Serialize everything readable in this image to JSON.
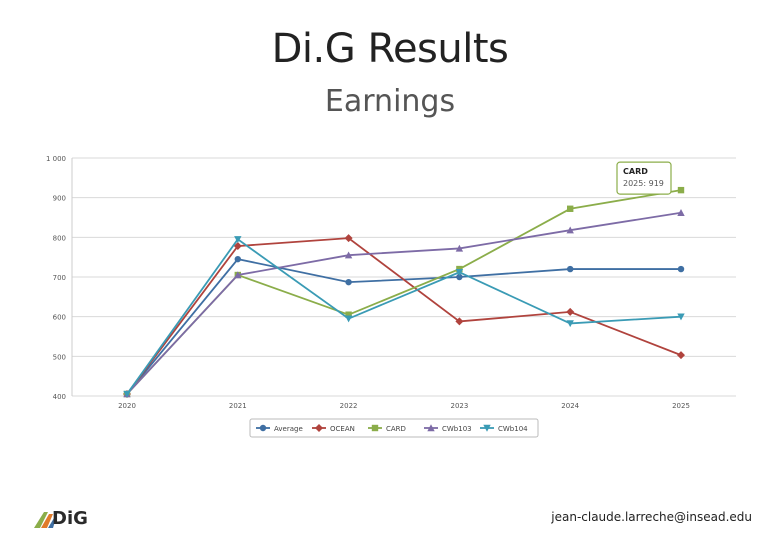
{
  "slide": {
    "title": "Di.G Results",
    "subtitle": "Earnings",
    "footer_email": "jean-claude.larreche@insead.edu",
    "logo_text": "DiG"
  },
  "colors": {
    "Average": "#3f6fa3",
    "OCEAN": "#b0433d",
    "CARD": "#8bad4a",
    "CWb103": "#7d6ba6",
    "CWb104": "#3a9bb5",
    "grid": "#d9d9d9",
    "tooltip_border": "#8bad4a"
  },
  "chart_data": {
    "type": "line",
    "x": [
      "2020",
      "2021",
      "2022",
      "2023",
      "2024",
      "2025"
    ],
    "ylim": [
      400,
      1000
    ],
    "yticks": [
      "1 000",
      "900",
      "800",
      "700",
      "600",
      "500",
      "400"
    ],
    "grid": true,
    "legend_position": "bottom",
    "series": [
      {
        "name": "Average",
        "marker": "circle",
        "values": [
          405,
          745,
          687,
          700,
          720,
          720
        ]
      },
      {
        "name": "OCEAN",
        "marker": "diamond",
        "values": [
          405,
          778,
          798,
          588,
          612,
          503
        ]
      },
      {
        "name": "CARD",
        "marker": "square",
        "values": [
          405,
          705,
          605,
          720,
          872,
          919
        ]
      },
      {
        "name": "CWb103",
        "marker": "triangle",
        "values": [
          405,
          705,
          755,
          772,
          818,
          862
        ]
      },
      {
        "name": "CWb104",
        "marker": "triangle-down",
        "values": [
          405,
          795,
          595,
          712,
          583,
          600
        ]
      }
    ],
    "tooltip": {
      "series": "CARD",
      "label": "2025: 919"
    }
  }
}
